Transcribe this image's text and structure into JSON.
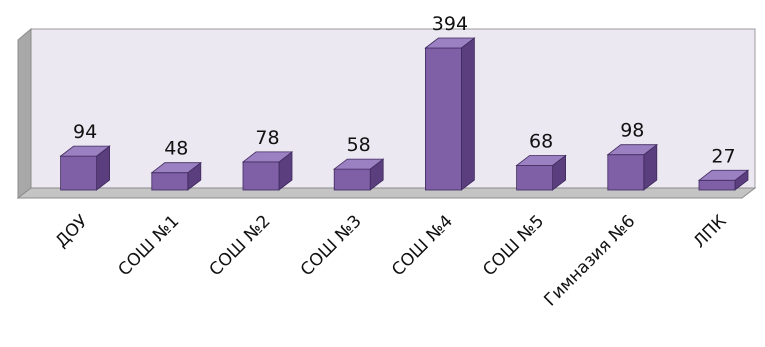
{
  "chart_data": {
    "type": "bar",
    "style": "3d-column",
    "title": "",
    "xlabel": "",
    "ylabel": "",
    "categories": [
      "ДОУ",
      "СОШ №1",
      "СОШ №2",
      "СОШ №3",
      "СОШ №4",
      "СОШ №5",
      "Гимназия №6",
      "ЛПК"
    ],
    "values": [
      94,
      48,
      78,
      58,
      394,
      68,
      98,
      27
    ],
    "ylim": [
      0,
      394
    ],
    "grid": false,
    "legend": "none",
    "data_labels": true
  },
  "colors": {
    "bar_front": "#7f5fa6",
    "bar_top": "#9b80c2",
    "bar_side": "#5a3e7d",
    "bar_edge": "#3f2a5e",
    "back_wall": "#ece8f1",
    "side_wall": "#a8a8a8",
    "floor": "#c4c4c4"
  }
}
